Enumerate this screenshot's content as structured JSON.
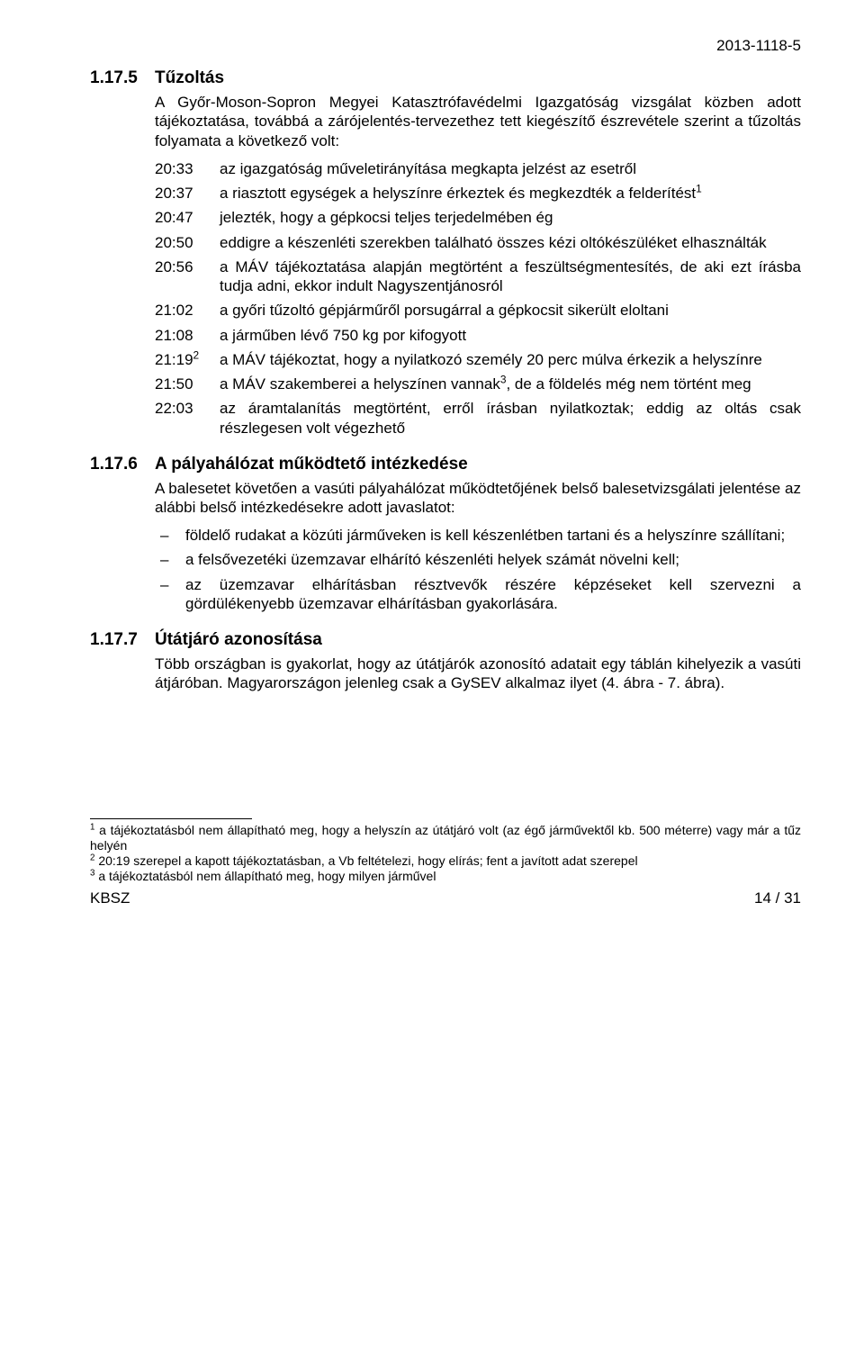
{
  "doc_id": "2013-1118-5",
  "section_1175": {
    "num": "1.17.5",
    "title": "Tűzoltás",
    "intro": "A Győr-Moson-Sopron Megyei Katasztrófavédelmi Igazgatóság vizsgálat közben adott tájékoztatása, továbbá a zárójelentés-tervezethez tett kiegészítő észrevétele szerint a tűzoltás folyamata a következő volt:",
    "rows": [
      {
        "time": "20:33",
        "text": "az igazgatóság műveletirányítása megkapta jelzést az esetről",
        "sup": ""
      },
      {
        "time": "20:37",
        "text": "a riasztott egységek a helyszínre érkeztek és megkezdték a felderítést",
        "sup": "1"
      },
      {
        "time": "20:47",
        "text": "jelezték, hogy a gépkocsi teljes terjedelmében ég",
        "sup": ""
      },
      {
        "time": "20:50",
        "text": "eddigre a készenléti szerekben található összes kézi oltókészüléket elhasználták",
        "sup": ""
      },
      {
        "time": "20:56",
        "text": "a MÁV tájékoztatása alapján megtörtént a feszültségmentesítés, de aki ezt írásba tudja adni, ekkor indult Nagyszentjánosról",
        "sup": ""
      },
      {
        "time": "21:02",
        "text": "a győri tűzoltó gépjárműről porsugárral a gépkocsit sikerült eloltani",
        "sup": ""
      },
      {
        "time": "21:08",
        "text": "a járműben lévő 750 kg por kifogyott",
        "sup": ""
      },
      {
        "time": "21:19",
        "time_sup": "2",
        "text": "a MÁV tájékoztat, hogy a nyilatkozó személy 20 perc múlva érkezik a helyszínre",
        "sup": ""
      },
      {
        "time": "21:50",
        "text": "a MÁV szakemberei a helyszínen vannak",
        "sup": "3",
        "tail": ", de a földelés még nem történt meg"
      },
      {
        "time": "22:03",
        "text": "az áramtalanítás megtörtént, erről írásban nyilatkoztak; eddig az oltás csak részlegesen volt végezhető",
        "sup": ""
      }
    ]
  },
  "section_1176": {
    "num": "1.17.6",
    "title": "A pályahálózat működtető intézkedése",
    "intro": "A balesetet követően a vasúti pályahálózat működtetőjének belső balesetvizsgálati jelentése az alábbi belső intézkedésekre adott javaslatot:",
    "bullets": [
      "földelő rudakat a közúti járműveken is kell készenlétben tartani és a helyszínre szállítani;",
      "a felsővezetéki üzemzavar elhárító készenléti helyek számát növelni kell;",
      "az üzemzavar elhárításban résztvevők részére képzéseket kell szervezni a gördülékenyebb üzemzavar elhárításban gyakorlására."
    ]
  },
  "section_1177": {
    "num": "1.17.7",
    "title": "Útátjáró azonosítása",
    "body": "Több országban is gyakorlat, hogy az útátjárók azonosító adatait egy táblán kihelyezik a vasúti átjáróban. Magyarországon jelenleg csak a GySEV alkalmaz ilyet (4. ábra - 7. ábra)."
  },
  "footnotes": {
    "f1": {
      "num": "1",
      "text": "a tájékoztatásból nem állapítható meg, hogy a helyszín az útátjáró volt (az égő járművektől kb. 500 méterre) vagy már a tűz helyén"
    },
    "f2": {
      "num": "2",
      "text": "20:19 szerepel a kapott tájékoztatásban, a Vb feltételezi, hogy elírás; fent a javított adat szerepel"
    },
    "f3": {
      "num": "3",
      "text": "a tájékoztatásból nem állapítható meg, hogy milyen járművel"
    }
  },
  "footer": {
    "left": "KBSZ",
    "right": "14 / 31"
  }
}
